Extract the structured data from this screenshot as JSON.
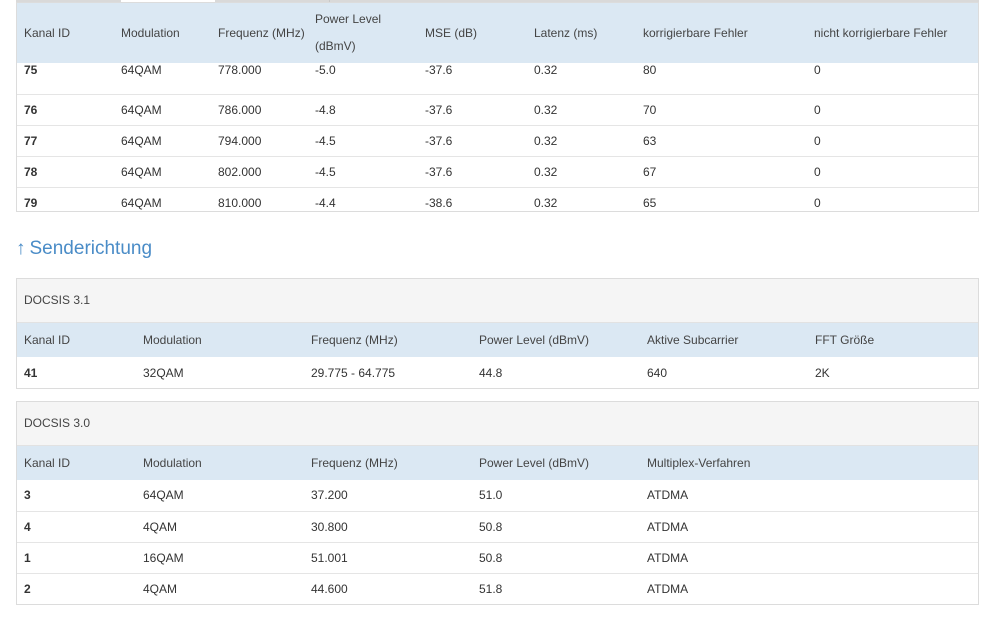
{
  "downstream": {
    "headers": {
      "kanal_id": "Kanal ID",
      "modulation": "Modulation",
      "frequenz": "Frequenz (MHz)",
      "power_level_line1": "Power Level",
      "power_level_line2": "(dBmV)",
      "mse": "MSE (dB)",
      "latenz": "Latenz (ms)",
      "korr": "korrigierbare Fehler",
      "nicht_korr": "nicht korrigierbare Fehler"
    },
    "rows": [
      {
        "id": "75",
        "mod": "64QAM",
        "freq": "778.000",
        "power": "-5.0",
        "mse": "-37.6",
        "lat": "0.32",
        "korr": "80",
        "nkorr": "0"
      },
      {
        "id": "76",
        "mod": "64QAM",
        "freq": "786.000",
        "power": "-4.8",
        "mse": "-37.6",
        "lat": "0.32",
        "korr": "70",
        "nkorr": "0"
      },
      {
        "id": "77",
        "mod": "64QAM",
        "freq": "794.000",
        "power": "-4.5",
        "mse": "-37.6",
        "lat": "0.32",
        "korr": "63",
        "nkorr": "0"
      },
      {
        "id": "78",
        "mod": "64QAM",
        "freq": "802.000",
        "power": "-4.5",
        "mse": "-37.6",
        "lat": "0.32",
        "korr": "67",
        "nkorr": "0"
      },
      {
        "id": "79",
        "mod": "64QAM",
        "freq": "810.000",
        "power": "-4.4",
        "mse": "-38.6",
        "lat": "0.32",
        "korr": "65",
        "nkorr": "0"
      }
    ]
  },
  "upstream": {
    "arrow": "↑",
    "title": "Senderichtung",
    "docsis31": {
      "group_label": "DOCSIS 3.1",
      "headers": {
        "kanal_id": "Kanal ID",
        "modulation": "Modulation",
        "frequenz": "Frequenz (MHz)",
        "power_level": "Power Level (dBmV)",
        "subcarrier": "Aktive Subcarrier",
        "fft": "FFT Größe"
      },
      "rows": [
        {
          "id": "41",
          "mod": "32QAM",
          "freq": "29.775 - 64.775",
          "power": "44.8",
          "sub": "640",
          "fft": "2K"
        }
      ]
    },
    "docsis30": {
      "group_label": "DOCSIS 3.0",
      "headers": {
        "kanal_id": "Kanal ID",
        "modulation": "Modulation",
        "frequenz": "Frequenz (MHz)",
        "power_level": "Power Level (dBmV)",
        "multiplex": "Multiplex-Verfahren"
      },
      "rows": [
        {
          "id": "3",
          "mod": "64QAM",
          "freq": "37.200",
          "power": "51.0",
          "mux": "ATDMA"
        },
        {
          "id": "4",
          "mod": "4QAM",
          "freq": "30.800",
          "power": "50.8",
          "mux": "ATDMA"
        },
        {
          "id": "1",
          "mod": "16QAM",
          "freq": "51.001",
          "power": "50.8",
          "mux": "ATDMA"
        },
        {
          "id": "2",
          "mod": "4QAM",
          "freq": "44.600",
          "power": "51.8",
          "mux": "ATDMA"
        }
      ]
    }
  },
  "colors": {
    "header_bg": "#dbe8f3",
    "group_bg": "#f5f5f5",
    "accent": "#4a8cc7"
  }
}
